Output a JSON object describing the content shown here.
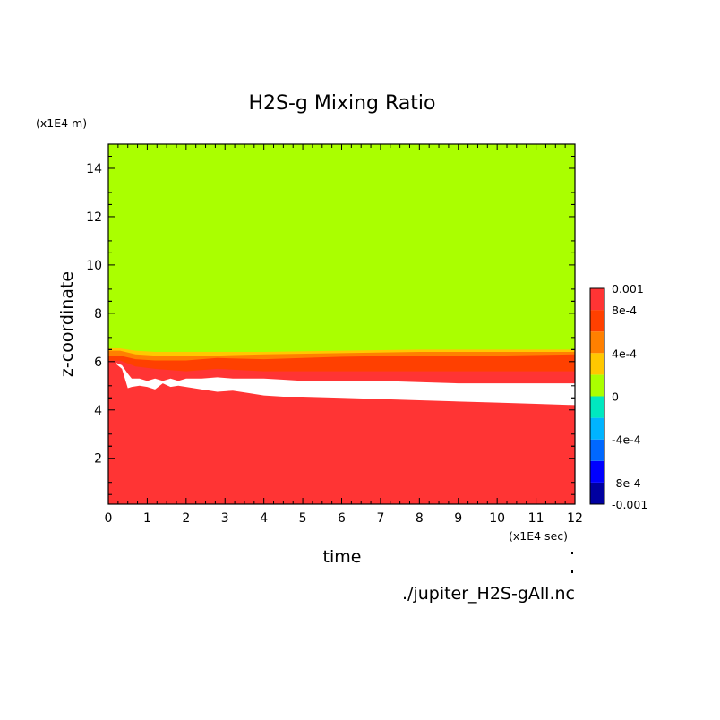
{
  "chart_data": {
    "type": "heatmap",
    "title": "H2S-g Mixing Ratio",
    "xlabel": "time",
    "ylabel": "z-coordinate",
    "x_unit": "(x1E4 sec)",
    "y_unit": "(x1E4 m)",
    "source_label": "./jupiter_H2S-gAll.nc",
    "xlim": [
      0,
      12
    ],
    "ylim": [
      0.1,
      15
    ],
    "x_ticks": [
      "0",
      "1",
      "2",
      "3",
      "4",
      "5",
      "6",
      "7",
      "8",
      "9",
      "10",
      "11",
      "12"
    ],
    "y_ticks": [
      "2",
      "4",
      "6",
      "8",
      "10",
      "12",
      "14"
    ],
    "colorbar": {
      "range": [
        -0.001,
        0.001
      ],
      "labels": [
        "0.001",
        "8e-4",
        "4e-4",
        "0",
        "-4e-4",
        "-8e-4",
        "-0.001"
      ],
      "levels": [
        {
          "min": -0.001,
          "max": -0.0008,
          "color": "#0000a0"
        },
        {
          "min": -0.0008,
          "max": -0.0006,
          "color": "#0000ff"
        },
        {
          "min": -0.0006,
          "max": -0.0004,
          "color": "#0068ff"
        },
        {
          "min": -0.0004,
          "max": -0.0002,
          "color": "#00b4ff"
        },
        {
          "min": -0.0002,
          "max": 0,
          "color": "#00e8c0"
        },
        {
          "min": 0,
          "max": 0.0002,
          "color": "#aaff00"
        },
        {
          "min": 0.0002,
          "max": 0.0004,
          "color": "#ffc800"
        },
        {
          "min": 0.0004,
          "max": 0.0006,
          "color": "#ff8000"
        },
        {
          "min": 0.0006,
          "max": 0.0008,
          "color": "#ff4000"
        },
        {
          "min": 0.0008,
          "max": 0.001,
          "color": "#ff3434"
        }
      ]
    },
    "regions": {
      "background_color": "#aaff00",
      "lower_color": "#ff3434",
      "bands": [
        {
          "color": "#ffc800",
          "x": [
            0,
            0.3,
            0.7,
            1.2,
            2,
            2.8,
            4,
            6,
            8,
            10,
            12
          ],
          "top": [
            6.55,
            6.55,
            6.45,
            6.4,
            6.4,
            6.4,
            6.4,
            6.45,
            6.5,
            6.5,
            6.5
          ]
        },
        {
          "color": "#ff8000",
          "x": [
            0,
            0.3,
            0.7,
            1.2,
            2,
            2.8,
            4,
            6,
            8,
            10,
            12
          ],
          "top": [
            6.45,
            6.45,
            6.3,
            6.25,
            6.25,
            6.25,
            6.3,
            6.35,
            6.4,
            6.4,
            6.4
          ]
        },
        {
          "color": "#ff4000",
          "x": [
            0,
            0.3,
            0.7,
            1.2,
            2,
            2.8,
            4,
            6,
            8,
            10,
            12
          ],
          "top": [
            6.25,
            6.25,
            6.1,
            6.05,
            6.05,
            6.15,
            6.1,
            6.2,
            6.25,
            6.25,
            6.3
          ]
        },
        {
          "color": "#ff3434",
          "x": [
            0,
            0.3,
            0.7,
            1.2,
            2,
            2.8,
            4,
            6,
            8,
            10,
            12
          ],
          "top": [
            6.05,
            6.05,
            5.8,
            5.7,
            5.6,
            5.7,
            5.6,
            5.6,
            5.6,
            5.6,
            5.6
          ]
        }
      ],
      "white_band": {
        "color": "#ffffff",
        "x": [
          0.2,
          0.35,
          0.5,
          0.6,
          0.8,
          1.0,
          1.2,
          1.4,
          1.6,
          1.8,
          2.0,
          2.4,
          2.8,
          3.2,
          3.6,
          4.0,
          4.5,
          5,
          6,
          7,
          8,
          9,
          10,
          11,
          12
        ],
        "top": [
          5.95,
          5.85,
          5.5,
          5.3,
          5.3,
          5.2,
          5.3,
          5.2,
          5.3,
          5.2,
          5.3,
          5.3,
          5.35,
          5.3,
          5.3,
          5.3,
          5.25,
          5.2,
          5.2,
          5.2,
          5.15,
          5.1,
          5.1,
          5.1,
          5.1
        ],
        "bottom": [
          5.9,
          5.7,
          4.9,
          4.95,
          5.0,
          4.95,
          4.85,
          5.1,
          4.95,
          5.0,
          4.95,
          4.85,
          4.75,
          4.8,
          4.7,
          4.6,
          4.55,
          4.55,
          4.5,
          4.45,
          4.4,
          4.35,
          4.3,
          4.25,
          4.2
        ]
      }
    }
  }
}
